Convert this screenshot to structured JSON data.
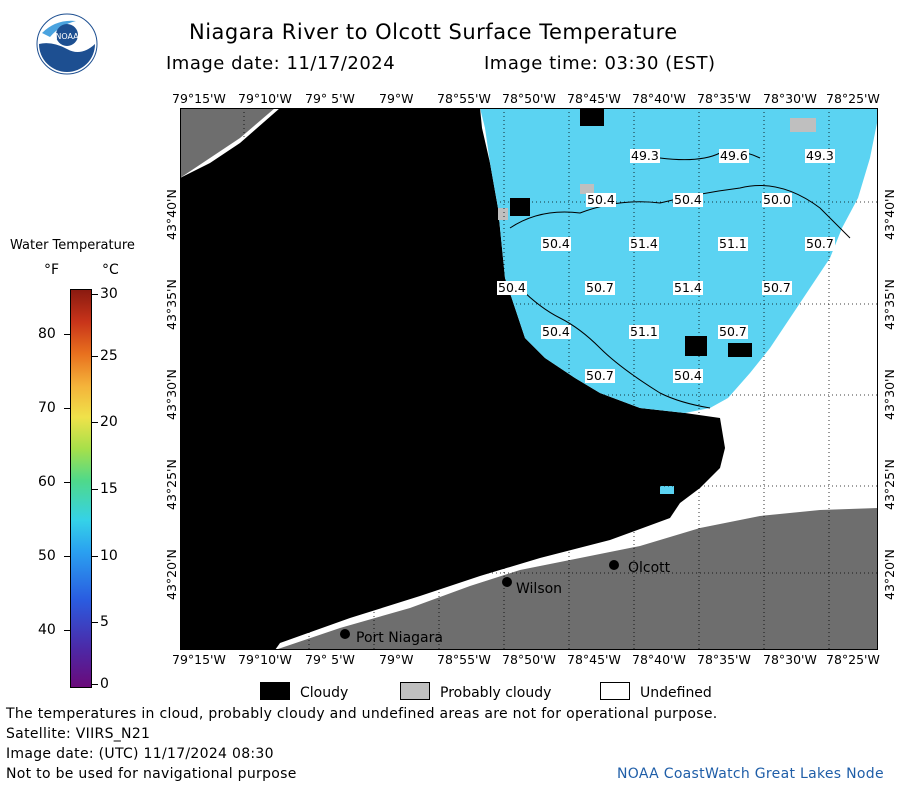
{
  "header": {
    "title": "Niagara River to Olcott Surface Temperature",
    "image_date_label": "Image date: 11/17/2024",
    "image_time_label": "Image time: 03:30 (EST)",
    "logo_text": "NOAA"
  },
  "axes": {
    "lon_ticks": [
      "79°15'W",
      "79°10'W",
      "79° 5'W",
      "79°W",
      "78°55'W",
      "78°50'W",
      "78°45'W",
      "78°40'W",
      "78°35'W",
      "78°30'W",
      "78°25'W"
    ],
    "lat_ticks": [
      "43°40'N",
      "43°35'N",
      "43°30'N",
      "43°25'N",
      "43°20'N"
    ]
  },
  "map": {
    "places": [
      {
        "name": "Olcott"
      },
      {
        "name": "Wilson"
      },
      {
        "name": "Port Niagara"
      }
    ],
    "temperature_labels": [
      {
        "text": "49.3"
      },
      {
        "text": "49.6"
      },
      {
        "text": "49.3"
      },
      {
        "text": "50.4"
      },
      {
        "text": "50.4"
      },
      {
        "text": "50.0"
      },
      {
        "text": "50.4"
      },
      {
        "text": "51.4"
      },
      {
        "text": "51.1"
      },
      {
        "text": "50.7"
      },
      {
        "text": "50.4"
      },
      {
        "text": "50.7"
      },
      {
        "text": "51.4"
      },
      {
        "text": "50.7"
      },
      {
        "text": "50.4"
      },
      {
        "text": "51.1"
      },
      {
        "text": "50.7"
      },
      {
        "text": "50.7"
      },
      {
        "text": "50.4"
      }
    ],
    "colors": {
      "water": "#5bd3f2",
      "cloud": "#000000",
      "land": "#6e6e6e",
      "probably_cloudy": "#bfbfbf",
      "undefined": "#ffffff"
    }
  },
  "colorbar": {
    "title": "Water Temperature",
    "unit_f": "°F",
    "unit_c": "°C",
    "f_labels": [
      "80",
      "70",
      "60",
      "50",
      "40"
    ],
    "c_labels": [
      "30",
      "25",
      "20",
      "15",
      "10",
      "5",
      "0"
    ]
  },
  "legend": {
    "cloudy": "Cloudy",
    "probably_cloudy": "Probably cloudy",
    "undefined": "Undefined"
  },
  "footer": {
    "disclaimer": "The temperatures in cloud, probably cloudy and undefined areas are not for operational purpose.",
    "satellite": "Satellite: VIIRS_N21",
    "utc_date": "Image date: (UTC) 11/17/2024  08:30",
    "nav_note": "Not to be used for navigational purpose",
    "credit": "NOAA CoastWatch Great Lakes Node"
  }
}
